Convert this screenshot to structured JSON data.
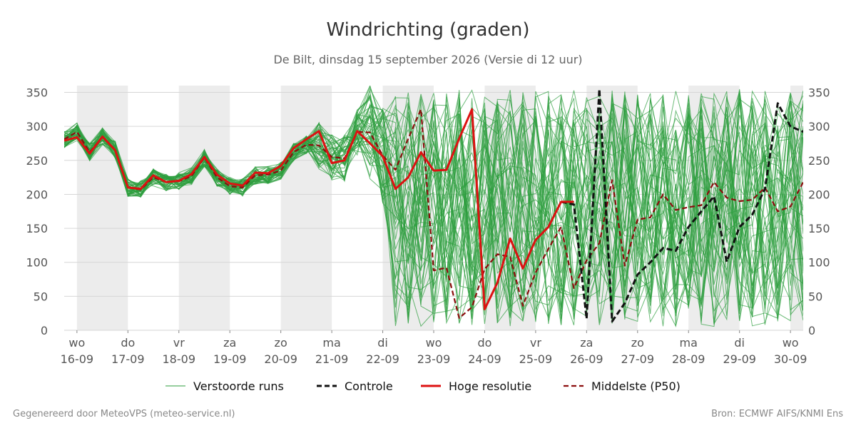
{
  "chart_data": {
    "type": "line",
    "title": "Windrichting (graden)",
    "subtitle": "De Bilt, dinsdag 15 september 2026 (Versie di 12 uur)",
    "ylim": [
      0,
      360
    ],
    "yticks": [
      0,
      50,
      100,
      150,
      200,
      250,
      300,
      350
    ],
    "xlim": [
      -0.25,
      14.25
    ],
    "x_unit": "days from 16-09 (wo)",
    "grid": true,
    "legend_position": "bottom-center",
    "shaded_days": [
      {
        "start": 0,
        "end": 1
      },
      {
        "start": 2,
        "end": 3
      },
      {
        "start": 4,
        "end": 5
      },
      {
        "start": 6,
        "end": 7
      },
      {
        "start": 8,
        "end": 9
      },
      {
        "start": 10,
        "end": 11
      },
      {
        "start": 12,
        "end": 13
      },
      {
        "start": 14,
        "end": 14.25
      }
    ],
    "xticks": [
      {
        "x": 0,
        "day": "wo",
        "date": "16-09"
      },
      {
        "x": 1,
        "day": "do",
        "date": "17-09"
      },
      {
        "x": 2,
        "day": "vr",
        "date": "18-09"
      },
      {
        "x": 3,
        "day": "za",
        "date": "19-09"
      },
      {
        "x": 4,
        "day": "zo",
        "date": "20-09"
      },
      {
        "x": 5,
        "day": "ma",
        "date": "21-09"
      },
      {
        "x": 6,
        "day": "di",
        "date": "22-09"
      },
      {
        "x": 7,
        "day": "wo",
        "date": "23-09"
      },
      {
        "x": 8,
        "day": "do",
        "date": "24-09"
      },
      {
        "x": 9,
        "day": "vr",
        "date": "25-09"
      },
      {
        "x": 10,
        "day": "za",
        "date": "26-09"
      },
      {
        "x": 11,
        "day": "zo",
        "date": "27-09"
      },
      {
        "x": 12,
        "day": "ma",
        "date": "28-09"
      },
      {
        "x": 13,
        "day": "di",
        "date": "29-09"
      },
      {
        "x": 14,
        "day": "wo",
        "date": "30-09"
      }
    ],
    "series": [
      {
        "name": "Hoge resolutie",
        "color": "#dd1111",
        "style": "solid",
        "x": [
          -0.25,
          0,
          0.25,
          0.5,
          0.75,
          1,
          1.25,
          1.5,
          1.75,
          2,
          2.25,
          2.5,
          2.75,
          3,
          3.25,
          3.5,
          3.75,
          4,
          4.25,
          4.5,
          4.75,
          5,
          5.25,
          5.5,
          5.75,
          6,
          6.25,
          6.5,
          6.75,
          7,
          7.25,
          7.5,
          7.75,
          8,
          8.25,
          8.5,
          8.75,
          9,
          9.25,
          9.5,
          9.75
        ],
        "values": [
          279,
          284,
          260,
          285,
          265,
          210,
          208,
          228,
          218,
          220,
          230,
          255,
          229,
          216,
          213,
          232,
          231,
          242,
          268,
          281,
          293,
          246,
          250,
          293,
          275,
          256,
          208,
          225,
          262,
          235,
          236,
          282,
          325,
          31,
          70,
          135,
          91,
          133,
          152,
          189,
          189
        ]
      },
      {
        "name": "Controle",
        "color": "#111111",
        "style": "dashed",
        "x": [
          9.5,
          9.75,
          10,
          10.25,
          10.5,
          10.75,
          11,
          11.25,
          11.5,
          11.75,
          12,
          12.25,
          12.5,
          12.75,
          13,
          13.25,
          13.5,
          13.75,
          14,
          14.25
        ],
        "values": [
          189,
          185,
          17,
          355,
          13,
          40,
          82,
          100,
          121,
          117,
          152,
          175,
          197,
          101,
          152,
          170,
          208,
          334,
          300,
          292
        ]
      },
      {
        "name": "Middelste (P50)",
        "color": "#8b0d0d",
        "style": "dashed",
        "x": [
          -0.25,
          0,
          0.25,
          0.5,
          0.75,
          1,
          1.25,
          1.5,
          1.75,
          2,
          2.25,
          2.5,
          2.75,
          3,
          3.25,
          3.5,
          3.75,
          4,
          4.25,
          4.5,
          4.75,
          5,
          5.25,
          5.5,
          5.75,
          6,
          6.25,
          6.5,
          6.75,
          7,
          7.25,
          7.5,
          7.75,
          8,
          8.25,
          8.5,
          8.75,
          9,
          9.25,
          9.5,
          9.75,
          10,
          10.25,
          10.5,
          10.75,
          11,
          11.25,
          11.5,
          11.75,
          12,
          12.25,
          12.5,
          12.75,
          13,
          13.25,
          13.5,
          13.75,
          14,
          14.25
        ],
        "values": [
          281,
          292,
          262,
          285,
          266,
          210,
          207,
          225,
          218,
          219,
          227,
          254,
          225,
          212,
          210,
          228,
          229,
          235,
          262,
          273,
          272,
          255,
          253,
          292,
          291,
          257,
          236,
          282,
          325,
          88,
          92,
          18,
          34,
          90,
          112,
          108,
          36,
          85,
          120,
          152,
          62,
          103,
          128,
          221,
          95,
          163,
          166,
          200,
          177,
          181,
          184,
          218,
          195,
          190,
          192,
          210,
          175,
          182,
          218
        ]
      },
      {
        "name": "Verstoorde runs",
        "color": "#2e9e3e",
        "style": "thin",
        "count": 50
      }
    ]
  },
  "legend": [
    {
      "label": "Verstoorde runs",
      "color": "#2e9e3e",
      "style": "thin"
    },
    {
      "label": "Controle",
      "color": "#111111",
      "style": "dashed"
    },
    {
      "label": "Hoge resolutie",
      "color": "#dd1111",
      "style": "solid"
    },
    {
      "label": "Middelste (P50)",
      "color": "#8b0d0d",
      "style": "dashed"
    }
  ],
  "footer": {
    "left": "Gegenereerd door MeteoVPS (meteo-service.nl)",
    "right": "Bron: ECMWF AIFS/KNMI Ens"
  }
}
